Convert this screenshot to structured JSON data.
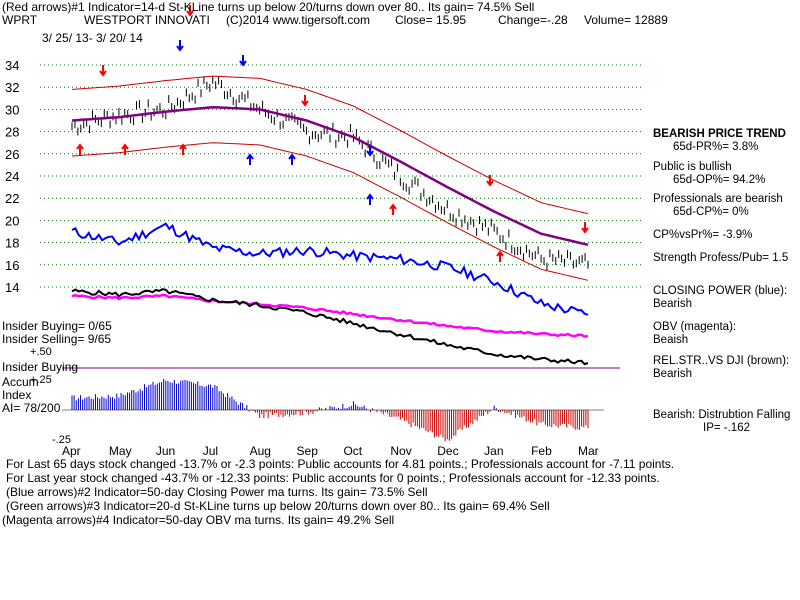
{
  "header": {
    "line1": "(Red arrows)#1 Indicator=14-d St-KLine turns up below 20/turns down over 80.. Its gain= 74.5% Sell",
    "symbol": "WPRT",
    "company": "WESTPORT INNOVATI",
    "copyright": "(C)2014 www.tigersoft.com",
    "close": "Close=  15.95",
    "change": "Change=-.28",
    "volume": "Volume= 12889",
    "date_range": "3/ 25/ 13-  3/ 20/ 14"
  },
  "right_panel": {
    "trend_title": "BEARISH PRICE TREND",
    "pr": "65d-PR%= 3.8%",
    "public": "Public is bullish",
    "op": "65d-OP%= 94.2%",
    "professionals": "Professionals are bearish",
    "cp": "65d-CP%= 0%",
    "cpvspr": "CP%vsPr%= -3.9%",
    "strength": "Strength Profess/Pub= 1.5",
    "closing_power_label": "CLOSING POWER (blue):",
    "closing_power_val": "Bearish",
    "obv_label": "OBV (magenta):",
    "obv_val": "Beaish",
    "relstr_label": "REL.STR..VS DJI (brown):",
    "relstr_val": "Bearish",
    "dist_label": "Bearish:  Distrubtion Falling",
    "ip": "IP= -.162"
  },
  "left_panel": {
    "insider_buying": "Insider Buying= 0/65",
    "insider_selling": "Insider Selling= 9/65",
    "insider_buying2": "Insider Buying",
    "accum1": "Accum",
    "accum2": "Index",
    "ai": "AI= 78/200",
    "plus50": "+.50",
    "plus25": "+.25",
    "minus25": "-.25"
  },
  "footer": {
    "line1": "For Last 65 days stock changed -13.7% or -2.3 points:  Public accounts for  4.81 points.;  Professionals account for -7.11 points.",
    "line2": "For Last year stock changed -43.7% or -12.33 points:  Public accounts for  0 points.;  Professionals account for -12.33 points.",
    "line3": "(Blue arrows)#2 Indicator=50-day Closing Power ma turns. Its gain= 73.5% Sell",
    "line4": "(Green arrows)#3 Indicator=20-d St-KLine turns up below 20/turns down over 80.. Its gain= 69.4% Sell",
    "line5": "(Magenta arrows)#4 Indicator=50-day OBV ma turns. Its gain= 49.2% Sell"
  },
  "colors": {
    "price": "#000000",
    "ma": "#800080",
    "band": "#cc0000",
    "closing_power": "#0000ff",
    "obv": "#ff00ff",
    "relstr": "#000000",
    "accum_pos": "#0000cc",
    "accum_neg": "#cc0000",
    "grid": "#008000",
    "red_arrow": "#ff0000",
    "blue_arrow": "#0000ff"
  },
  "chart_data": {
    "type": "line",
    "title": "WESTPORT INNOVATI",
    "xlabel": "",
    "ylabel": "",
    "x": [
      "Apr",
      "May",
      "Jun",
      "Jul",
      "Aug",
      "Sep",
      "Oct",
      "Nov",
      "Dec",
      "Jan",
      "Feb",
      "Mar"
    ],
    "ylim": [
      14,
      35
    ],
    "yticks": [
      34,
      32,
      30,
      28,
      26,
      24,
      22,
      20,
      18,
      16,
      14
    ],
    "grid": "horizontal dotted",
    "series": [
      {
        "values": [
          28.5,
          29.5,
          30.0,
          32.5,
          30.0,
          28.0,
          27.5,
          24.0,
          21.0,
          19.0,
          16.5,
          16.0
        ]
      },
      {
        "values": [
          29.0,
          29.3,
          29.8,
          30.2,
          30.0,
          29.0,
          27.5,
          25.3,
          23.0,
          20.8,
          18.8,
          17.8
        ]
      }
    ],
    "indicators": {
      "closing_power": [
        19.0,
        18.0,
        19.5,
        17.5,
        17.0,
        17.3,
        16.8,
        16.5,
        15.8,
        14.5,
        12.5,
        11.5
      ],
      "obv": [
        13.0,
        12.8,
        13.0,
        12.5,
        12.2,
        11.8,
        11.2,
        10.6,
        10.0,
        9.5,
        9.2,
        9.0
      ],
      "accum_index": [
        0.1,
        0.12,
        0.25,
        0.2,
        -0.05,
        -0.02,
        0.05,
        -0.08,
        -0.25,
        0.02,
        -0.12,
        -0.15
      ]
    },
    "x_axis_labels": [
      "Apr",
      "May",
      "Jun",
      "Jul",
      "Aug",
      "Sep",
      "Oct",
      "Nov",
      "Dec",
      "Jan",
      "Feb",
      "Mar"
    ]
  }
}
